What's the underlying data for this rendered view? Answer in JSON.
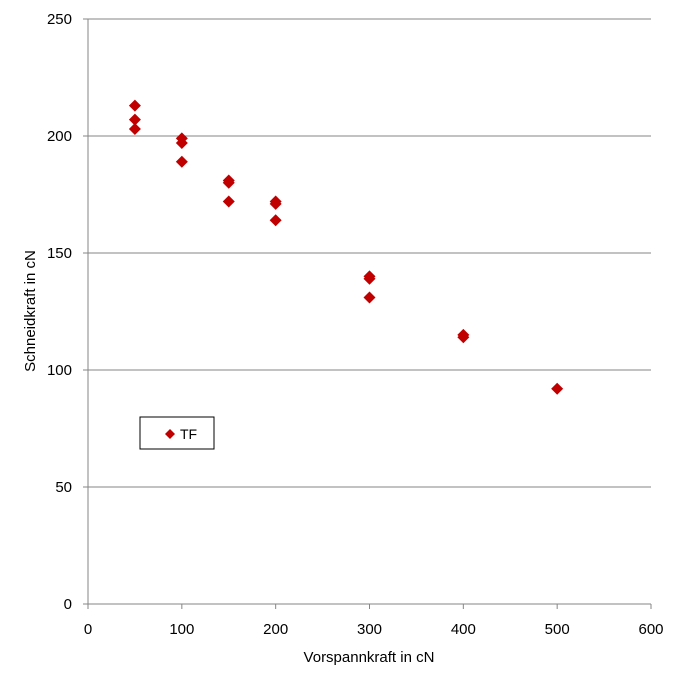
{
  "chart_data": {
    "type": "scatter",
    "title": "",
    "xlabel": "Vorspannkraft  in  cN",
    "ylabel": "Schneidkraft  in cN",
    "xlim": [
      0,
      600
    ],
    "ylim": [
      0,
      250
    ],
    "xticks": [
      0,
      100,
      200,
      300,
      400,
      500,
      600
    ],
    "yticks": [
      0,
      50,
      100,
      150,
      200,
      250
    ],
    "grid": {
      "y": true,
      "x": false
    },
    "legend": {
      "placement": "lower-left inside plot"
    },
    "series": [
      {
        "name": "TF",
        "color": "#C00000",
        "marker": "diamond",
        "x": [
          50,
          50,
          50,
          100,
          100,
          100,
          150,
          150,
          150,
          200,
          200,
          200,
          300,
          300,
          300,
          400,
          400,
          500
        ],
        "y": [
          213,
          207,
          203,
          199,
          197,
          189,
          181,
          180,
          172,
          172,
          171,
          164,
          140,
          139,
          131,
          115,
          114,
          92
        ]
      }
    ]
  }
}
